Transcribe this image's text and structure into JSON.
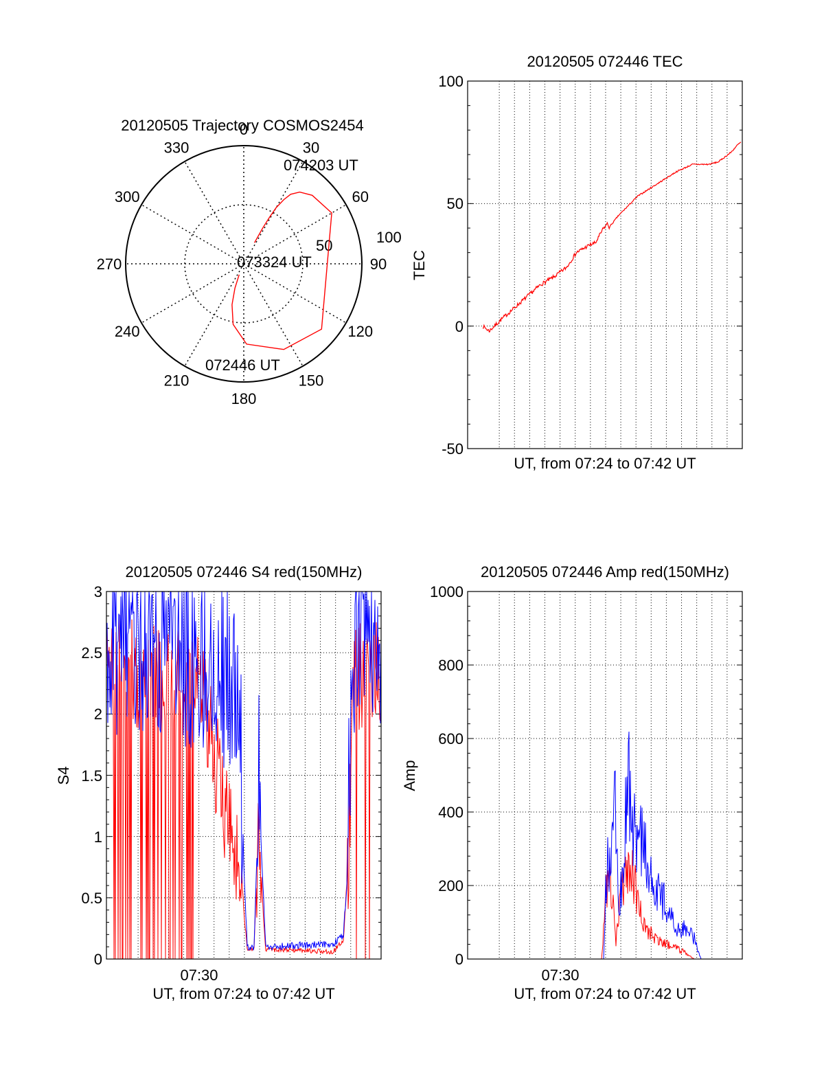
{
  "chart_data": [
    {
      "type": "polar",
      "title": "20120505 Trajectory COSMOS2454",
      "azimuth_labels": [
        "0",
        "30",
        "60",
        "90",
        "120",
        "150",
        "180",
        "210",
        "240",
        "270",
        "300",
        "330"
      ],
      "elevation_labels": [
        "50",
        "100"
      ],
      "series": [
        {
          "color": "#ff0000",
          "points": [
            [
              203,
              10
            ],
            [
              200,
              22
            ],
            [
              196,
              36
            ],
            [
              190,
              52
            ],
            [
              178,
              68
            ],
            [
              155,
              80
            ],
            [
              130,
              86
            ],
            [
              60,
              86
            ],
            [
              45,
              82
            ],
            [
              38,
              77
            ],
            [
              34,
              71
            ],
            [
              32,
              64
            ],
            [
              30,
              55
            ],
            [
              29,
              45
            ],
            [
              28,
              35
            ],
            [
              27,
              20
            ]
          ]
        }
      ],
      "annotations": [
        {
          "text": "074203 UT",
          "at": [
            27,
            20
          ]
        },
        {
          "text": "073324 UT",
          "at": [
            130,
            86
          ]
        },
        {
          "text": "072446 UT",
          "at": [
            203,
            10
          ]
        }
      ]
    },
    {
      "type": "line",
      "title": "20120505 072446 TEC",
      "ylabel": "TEC",
      "xlabel": "UT, from 07:24 to 07:42 UT",
      "xlim": [
        0,
        1080
      ],
      "ylim": [
        -50,
        100
      ],
      "yticks": [
        "100",
        "50",
        "0",
        "-50"
      ],
      "grid": true,
      "series": [
        {
          "color": "#ff0000",
          "x": [
            0,
            20,
            60,
            120,
            180,
            220,
            260,
            290,
            330,
            350,
            370,
            386,
            392,
            396,
            402,
            420,
            480,
            540,
            600,
            650,
            700,
            730,
            770,
            790,
            800
          ],
          "y": [
            0,
            -2,
            3,
            10,
            17,
            20,
            24,
            30,
            33,
            34,
            39,
            42,
            40,
            41,
            42,
            45,
            53,
            58,
            63,
            66,
            66,
            67,
            71,
            74,
            75
          ]
        }
      ]
    },
    {
      "type": "line",
      "title": "20120505 072446 S4 red(150MHz)",
      "ylabel": "S4",
      "xlabel": "UT, from 07:24 to 07:42 UT",
      "xlim": [
        0,
        1080
      ],
      "ylim": [
        0,
        3
      ],
      "yticks": [
        "3",
        "2.5",
        "2",
        "1.5",
        "1",
        "0.5",
        "0"
      ],
      "xticks": [
        "07:30"
      ],
      "grid": true,
      "series": [
        {
          "color": "#ff0000",
          "x": [],
          "y": []
        },
        {
          "color": "#0000ff",
          "x": [],
          "y": []
        }
      ]
    },
    {
      "type": "line",
      "title": "20120505 072446 Amp red(150MHz)",
      "ylabel": "Amp",
      "xlabel": "UT, from 07:24 to 07:42 UT",
      "xlim": [
        0,
        1080
      ],
      "ylim": [
        0,
        1000
      ],
      "yticks": [
        "1000",
        "800",
        "600",
        "400",
        "200",
        "0"
      ],
      "xticks": [
        "07:30"
      ],
      "grid": true,
      "series": [
        {
          "color": "#ff0000",
          "x": [],
          "y": []
        },
        {
          "color": "#0000ff",
          "x": [],
          "y": []
        }
      ]
    }
  ]
}
